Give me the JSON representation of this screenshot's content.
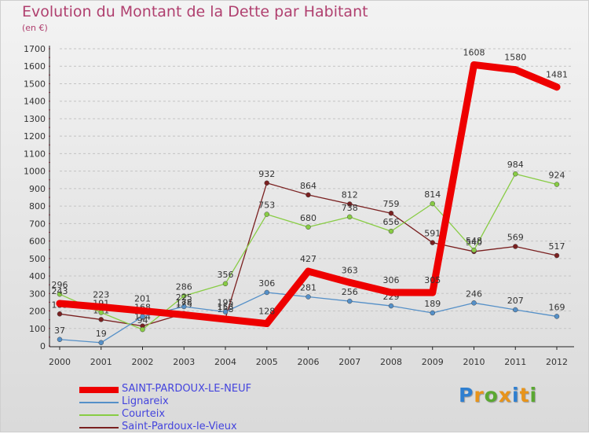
{
  "title": "Evolution du Montant de la Dette par Habitant",
  "unit": "(en €)",
  "logo": {
    "letters": [
      "P",
      "r",
      "o",
      "x",
      "i",
      "t",
      "i"
    ],
    "colors": [
      "#2f7fd0",
      "#e8941a",
      "#5aa832",
      "#e8941a",
      "#2f7fd0",
      "#e8941a",
      "#5aa832"
    ]
  },
  "chart_data": {
    "type": "line",
    "x": [
      "2000",
      "2001",
      "2002",
      "2003",
      "2004",
      "2005",
      "2006",
      "2007",
      "2008",
      "2009",
      "2010",
      "2011",
      "2012"
    ],
    "ylim": [
      0,
      1700
    ],
    "yticks": [
      0,
      100,
      200,
      300,
      400,
      500,
      600,
      700,
      800,
      900,
      1000,
      1100,
      1200,
      1300,
      1400,
      1500,
      1600,
      1700
    ],
    "grid": "dashed horizontal",
    "legend": "bottom-left",
    "series": [
      {
        "name": "Saint-Pardoux-le-Vieux",
        "color": "#7a2020",
        "values": [
          183,
          151,
          114,
          185,
          158,
          932,
          864,
          812,
          759,
          591,
          540,
          569,
          517
        ],
        "labels": [
          "183",
          "151",
          "114",
          "185",
          "158",
          "932",
          "864",
          "812",
          "759",
          "591",
          "540",
          "569",
          "517"
        ]
      },
      {
        "name": "Courteix",
        "color": "#88cc44",
        "values": [
          296,
          191,
          94,
          286,
          356,
          753,
          680,
          738,
          656,
          814,
          548,
          984,
          924
        ],
        "labels": [
          "296",
          "191",
          "94",
          "286",
          "356",
          "753",
          "680",
          "738",
          "656",
          "814",
          "548",
          "984",
          "924"
        ]
      },
      {
        "name": "Lignareix",
        "color": "#5590c8",
        "values": [
          37,
          19,
          168,
          225,
          195,
          306,
          281,
          256,
          229,
          189,
          246,
          207,
          169
        ],
        "labels": [
          "37",
          "19",
          "168",
          "225",
          "195",
          "306",
          "281",
          "256",
          "229",
          "189",
          "246",
          "207",
          "169"
        ]
      },
      {
        "name": "SAINT-PARDOUX-LE-NEUF",
        "color": "#ee0000",
        "values": [
          243,
          223,
          201,
          178,
          153,
          128,
          427,
          363,
          306,
          305,
          1608,
          1580,
          1481
        ],
        "labels": [
          "243",
          "223",
          "201",
          "178",
          "153",
          "128",
          "427",
          "363",
          "306",
          "305",
          "1608",
          "1580",
          "1481"
        ]
      }
    ],
    "legend_order": [
      "SAINT-PARDOUX-LE-NEUF",
      "Lignareix",
      "Courteix",
      "Saint-Pardoux-le-Vieux"
    ]
  }
}
